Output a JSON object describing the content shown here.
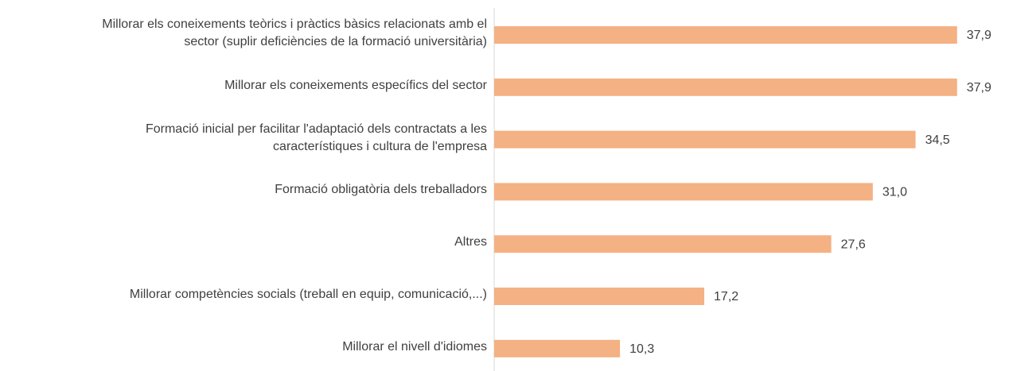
{
  "chart_data": {
    "type": "bar",
    "orientation": "horizontal",
    "categories": [
      "Millorar els coneixements teòrics i pràctics bàsics relacionats amb el\nsector (suplir deficiències de la formació universitària)",
      "Millorar els coneixements específics del sector",
      "Formació inicial per facilitar l'adaptació dels contractats a les \ncaracterístiques i cultura de l'empresa",
      "Formació obligatòria dels treballadors",
      "Altres",
      "Millorar competències socials (treball en equip, comunicació,...)",
      "Millorar el nivell d'idiomes"
    ],
    "values": [
      37.9,
      37.9,
      34.5,
      31.0,
      27.6,
      17.2,
      10.3
    ],
    "value_labels": [
      "37,9",
      "37,9",
      "34,5",
      "31,0",
      "27,6",
      "17,2",
      "10,3"
    ],
    "color": "#f4b183",
    "xlim": [
      0,
      40
    ]
  }
}
